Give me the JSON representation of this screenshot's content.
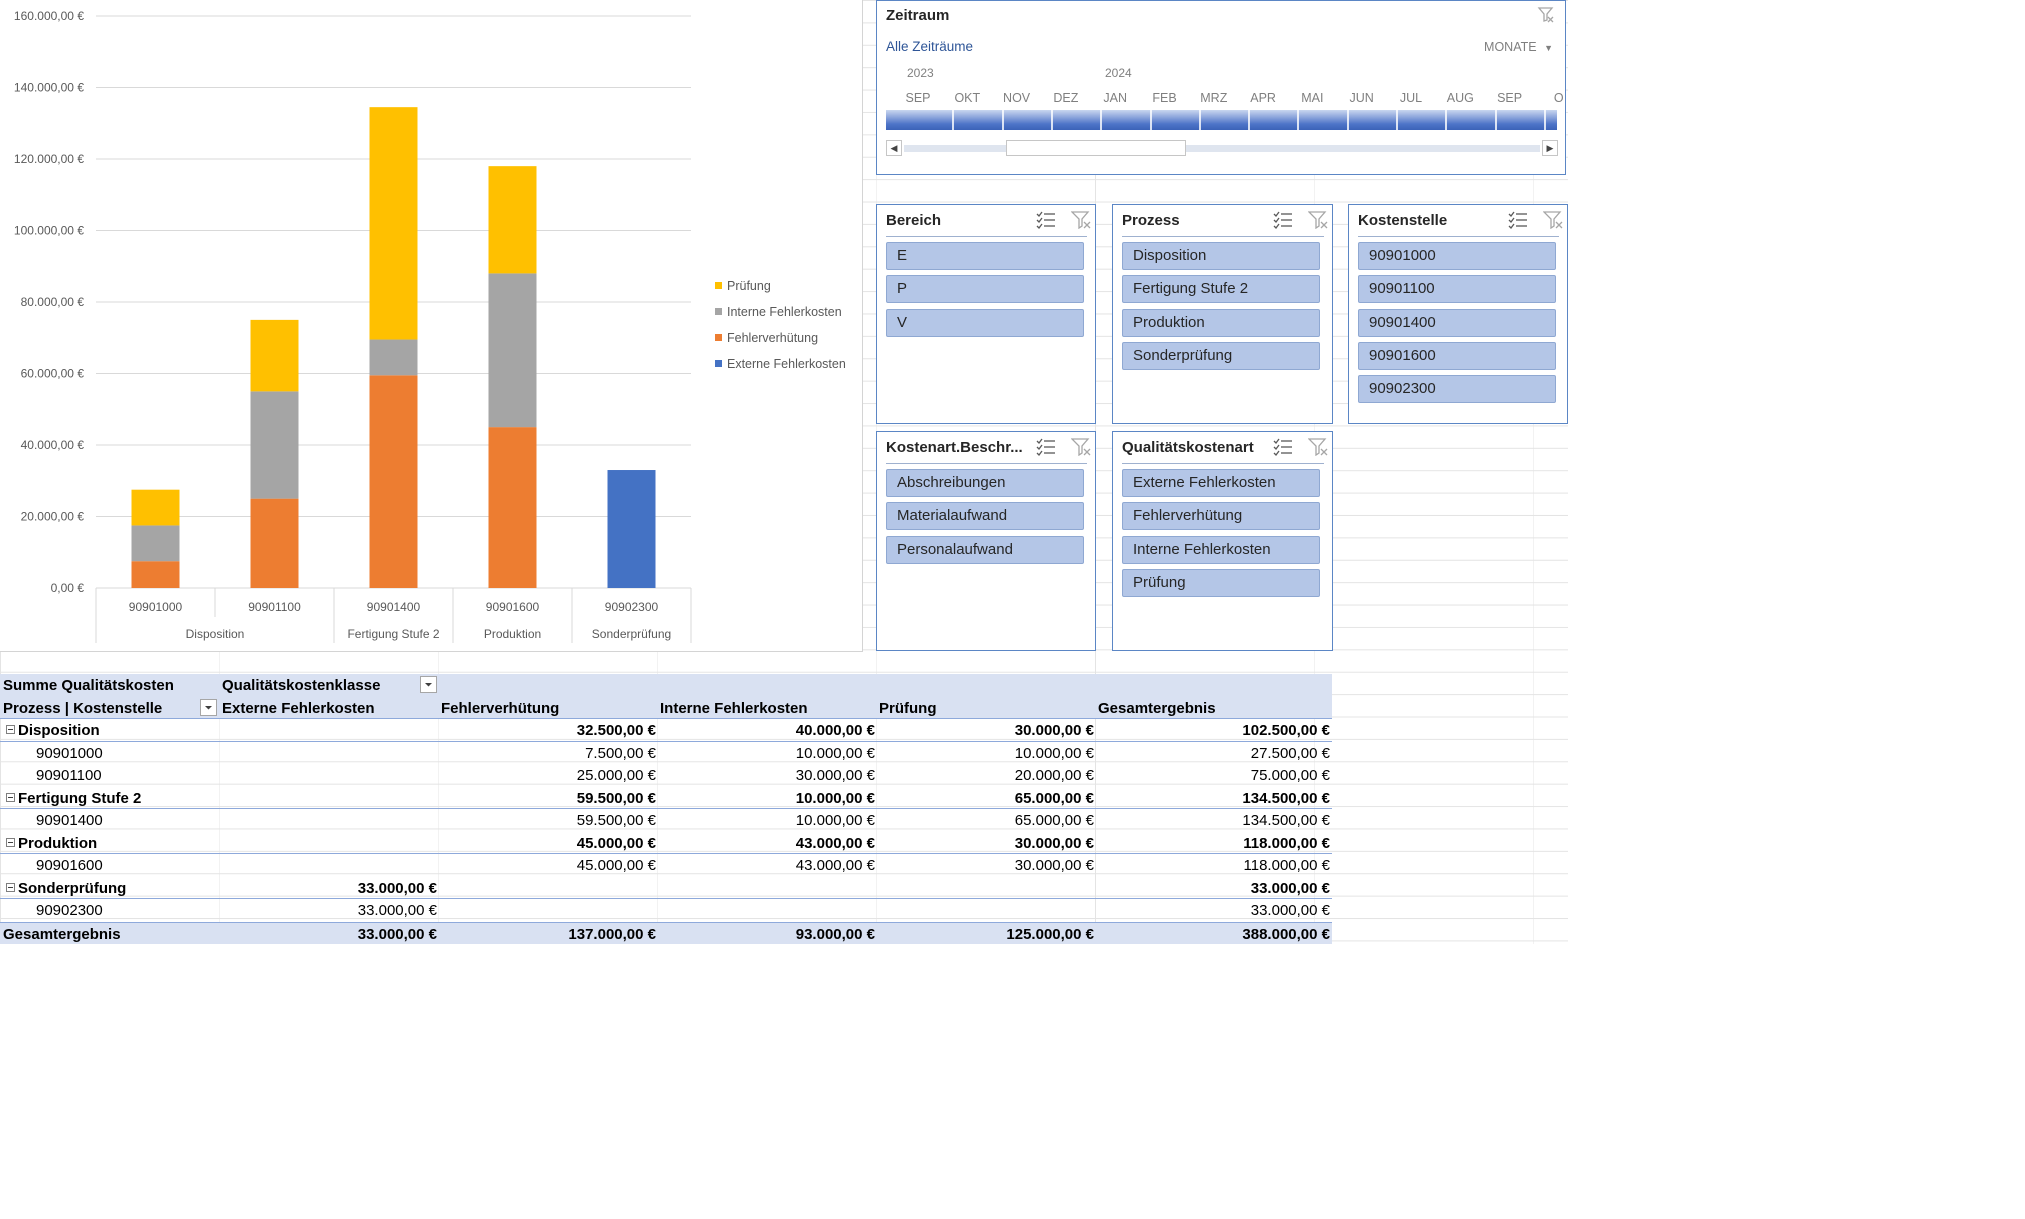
{
  "chart_data": {
    "type": "bar",
    "stacked": true,
    "categories": [
      "90901000",
      "90901100",
      "90901400",
      "90901600",
      "90902300"
    ],
    "groups": [
      {
        "label": "Disposition",
        "categories": [
          "90901000",
          "90901100"
        ]
      },
      {
        "label": "Fertigung Stufe 2",
        "categories": [
          "90901400"
        ]
      },
      {
        "label": "Produktion",
        "categories": [
          "90901600"
        ]
      },
      {
        "label": "Sonderprüfung",
        "categories": [
          "90902300"
        ]
      }
    ],
    "series": [
      {
        "name": "Externe Fehlerkosten",
        "color": "#4472c4",
        "values": [
          0,
          0,
          0,
          0,
          33000
        ]
      },
      {
        "name": "Fehlerverhütung",
        "color": "#ed7d31",
        "values": [
          7500,
          25000,
          59500,
          45000,
          0
        ]
      },
      {
        "name": "Interne Fehlerkosten",
        "color": "#a5a5a5",
        "values": [
          10000,
          30000,
          10000,
          43000,
          0
        ]
      },
      {
        "name": "Prüfung",
        "color": "#ffc000",
        "values": [
          10000,
          20000,
          65000,
          30000,
          0
        ]
      }
    ],
    "legend_order": [
      "Prüfung",
      "Interne Fehlerkosten",
      "Fehlerverhütung",
      "Externe Fehlerkosten"
    ],
    "y_ticks": [
      "0,00 €",
      "20.000,00 €",
      "40.000,00 €",
      "60.000,00 €",
      "80.000,00 €",
      "100.000,00 €",
      "120.000,00 €",
      "140.000,00 €",
      "160.000,00 €"
    ],
    "ylim": [
      0,
      160000
    ],
    "grid": true,
    "legend_position": "right"
  },
  "timeline": {
    "title": "Zeitraum",
    "all_periods": "Alle Zeiträume",
    "level": "MONATE",
    "years": [
      "2023",
      "2024"
    ],
    "months": [
      "SEP",
      "OKT",
      "NOV",
      "DEZ",
      "JAN",
      "FEB",
      "MRZ",
      "APR",
      "MAI",
      "JUN",
      "JUL",
      "AUG",
      "SEP",
      "O"
    ]
  },
  "slicers": {
    "bereich": {
      "title": "Bereich",
      "items": [
        "E",
        "P",
        "V"
      ]
    },
    "prozess": {
      "title": "Prozess",
      "items": [
        "Disposition",
        "Fertigung Stufe 2",
        "Produktion",
        "Sonderprüfung"
      ]
    },
    "kostenstelle": {
      "title": "Kostenstelle",
      "items": [
        "90901000",
        "90901100",
        "90901400",
        "90901600",
        "90902300"
      ]
    },
    "kostenart": {
      "title": "Kostenart.Beschr...",
      "items": [
        "Abschreibungen",
        "Materialaufwand",
        "Personalaufwand"
      ]
    },
    "qualitaetskostenart": {
      "title": "Qualitätskostenart",
      "items": [
        "Externe Fehlerkosten",
        "Fehlerverhütung",
        "Interne Fehlerkosten",
        "Prüfung"
      ]
    }
  },
  "pivot": {
    "value_field": "Summe Qualitätskosten",
    "column_field": "Qualitätskostenklasse",
    "row_field": "Prozess | Kostenstelle",
    "columns": [
      "Externe Fehlerkosten",
      "Fehlerverhütung",
      "Interne Fehlerkosten",
      "Prüfung",
      "Gesamtergebnis"
    ],
    "rows": [
      {
        "label": "Disposition",
        "group": true,
        "values": [
          "",
          "32.500,00 €",
          "40.000,00 €",
          "30.000,00 €",
          "102.500,00 €"
        ]
      },
      {
        "label": "90901000",
        "group": false,
        "values": [
          "",
          "7.500,00 €",
          "10.000,00 €",
          "10.000,00 €",
          "27.500,00 €"
        ]
      },
      {
        "label": "90901100",
        "group": false,
        "values": [
          "",
          "25.000,00 €",
          "30.000,00 €",
          "20.000,00 €",
          "75.000,00 €"
        ]
      },
      {
        "label": "Fertigung Stufe 2",
        "group": true,
        "values": [
          "",
          "59.500,00 €",
          "10.000,00 €",
          "65.000,00 €",
          "134.500,00 €"
        ]
      },
      {
        "label": "90901400",
        "group": false,
        "values": [
          "",
          "59.500,00 €",
          "10.000,00 €",
          "65.000,00 €",
          "134.500,00 €"
        ]
      },
      {
        "label": "Produktion",
        "group": true,
        "values": [
          "",
          "45.000,00 €",
          "43.000,00 €",
          "30.000,00 €",
          "118.000,00 €"
        ]
      },
      {
        "label": "90901600",
        "group": false,
        "values": [
          "",
          "45.000,00 €",
          "43.000,00 €",
          "30.000,00 €",
          "118.000,00 €"
        ]
      },
      {
        "label": "Sonderprüfung",
        "group": true,
        "values": [
          "33.000,00 €",
          "",
          "",
          "",
          "33.000,00 €"
        ]
      },
      {
        "label": "90902300",
        "group": false,
        "values": [
          "33.000,00 €",
          "",
          "",
          "",
          "33.000,00 €"
        ]
      }
    ],
    "total": {
      "label": "Gesamtergebnis",
      "values": [
        "33.000,00 €",
        "137.000,00 €",
        "93.000,00 €",
        "125.000,00 €",
        "388.000,00 €"
      ]
    }
  }
}
